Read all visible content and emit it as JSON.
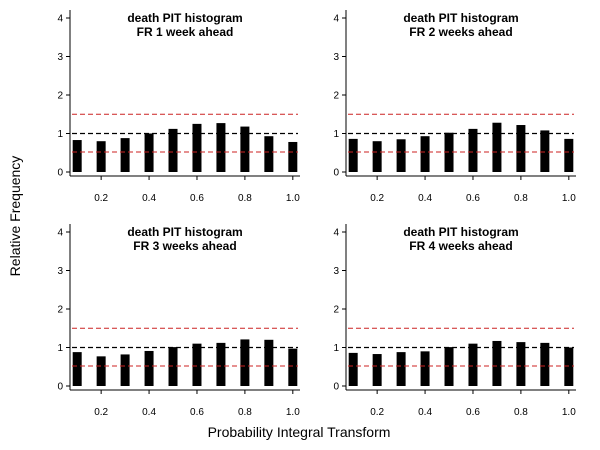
{
  "ylabel": "Relative Frequency",
  "xlabel": "Probability Integral Transform",
  "colors": {
    "bar": "#000000",
    "reference": "#000000",
    "bounds": "#cc2222"
  },
  "chart_data": [
    {
      "type": "bar",
      "title": "death PIT histogram",
      "subtitle": "FR 1 week ahead",
      "x": [
        0.1,
        0.2,
        0.3,
        0.4,
        0.5,
        0.6,
        0.7,
        0.8,
        0.9,
        1.0
      ],
      "values": [
        0.83,
        0.8,
        0.88,
        1.0,
        1.12,
        1.25,
        1.27,
        1.18,
        0.93,
        0.78
      ],
      "xticks": [
        "0.2",
        "0.4",
        "0.6",
        "0.8",
        "1.0"
      ],
      "yticks": [
        "0",
        "1",
        "2",
        "3",
        "4"
      ],
      "ylim": [
        0,
        4
      ],
      "reference_line": 1.0,
      "bounds": [
        0.52,
        1.5
      ]
    },
    {
      "type": "bar",
      "title": "death PIT histogram",
      "subtitle": "FR 2 weeks ahead",
      "x": [
        0.1,
        0.2,
        0.3,
        0.4,
        0.5,
        0.6,
        0.7,
        0.8,
        0.9,
        1.0
      ],
      "values": [
        0.86,
        0.8,
        0.85,
        0.93,
        1.02,
        1.12,
        1.28,
        1.22,
        1.08,
        0.86
      ],
      "xticks": [
        "0.2",
        "0.4",
        "0.6",
        "0.8",
        "1.0"
      ],
      "yticks": [
        "0",
        "1",
        "2",
        "3",
        "4"
      ],
      "ylim": [
        0,
        4
      ],
      "reference_line": 1.0,
      "bounds": [
        0.52,
        1.5
      ]
    },
    {
      "type": "bar",
      "title": "death PIT histogram",
      "subtitle": "FR 3 weeks ahead",
      "x": [
        0.1,
        0.2,
        0.3,
        0.4,
        0.5,
        0.6,
        0.7,
        0.8,
        0.9,
        1.0
      ],
      "values": [
        0.88,
        0.77,
        0.82,
        0.91,
        1.01,
        1.1,
        1.12,
        1.21,
        1.2,
        0.97
      ],
      "xticks": [
        "0.2",
        "0.4",
        "0.6",
        "0.8",
        "1.0"
      ],
      "yticks": [
        "0",
        "1",
        "2",
        "3",
        "4"
      ],
      "ylim": [
        0,
        4
      ],
      "reference_line": 1.0,
      "bounds": [
        0.52,
        1.5
      ]
    },
    {
      "type": "bar",
      "title": "death PIT histogram",
      "subtitle": "FR 4 weeks ahead",
      "x": [
        0.1,
        0.2,
        0.3,
        0.4,
        0.5,
        0.6,
        0.7,
        0.8,
        0.9,
        1.0
      ],
      "values": [
        0.86,
        0.83,
        0.88,
        0.9,
        1.01,
        1.1,
        1.17,
        1.14,
        1.12,
        1.0
      ],
      "xticks": [
        "0.2",
        "0.4",
        "0.6",
        "0.8",
        "1.0"
      ],
      "yticks": [
        "0",
        "1",
        "2",
        "3",
        "4"
      ],
      "ylim": [
        0,
        4
      ],
      "reference_line": 1.0,
      "bounds": [
        0.52,
        1.5
      ]
    }
  ]
}
